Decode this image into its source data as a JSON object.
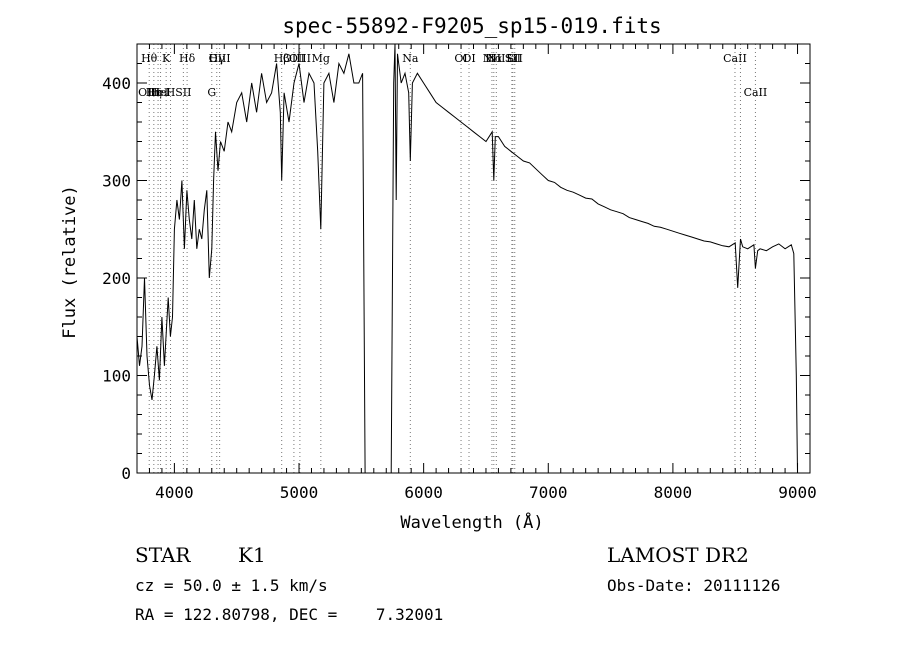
{
  "chart_data": {
    "type": "line",
    "title": "spec-55892-F9205_sp15-019.fits",
    "xlabel": "Wavelength (Å)",
    "ylabel": "Flux (relative)",
    "xlim": [
      3700,
      9100
    ],
    "ylim": [
      0,
      440
    ],
    "xticks": [
      4000,
      5000,
      6000,
      7000,
      8000,
      9000
    ],
    "yticks": [
      0,
      100,
      200,
      300,
      400
    ],
    "grid": false,
    "line_markers": [
      {
        "x": 3798,
        "top": "Hθ",
        "bottom": "OIII"
      },
      {
        "x": 3835,
        "top": "",
        "bottom": "Hη"
      },
      {
        "x": 3869,
        "top": "",
        "bottom": "HeI"
      },
      {
        "x": 3889,
        "top": "",
        "bottom": "HeI"
      },
      {
        "x": 3934,
        "top": "K",
        "bottom": ""
      },
      {
        "x": 3969,
        "top": "",
        "bottom": "H"
      },
      {
        "x": 4072,
        "top": "",
        "bottom": "SII"
      },
      {
        "x": 4102,
        "top": "Hδ",
        "bottom": ""
      },
      {
        "x": 4300,
        "top": "",
        "bottom": "G"
      },
      {
        "x": 4340,
        "top": "Hγ",
        "bottom": ""
      },
      {
        "x": 4363,
        "top": "OIII",
        "bottom": ""
      },
      {
        "x": 4861,
        "top": "Hβ",
        "bottom": ""
      },
      {
        "x": 4959,
        "top": "OIII",
        "bottom": ""
      },
      {
        "x": 5007,
        "top": "OIII",
        "bottom": ""
      },
      {
        "x": 5175,
        "top": "Mg",
        "bottom": ""
      },
      {
        "x": 5893,
        "top": "Na",
        "bottom": ""
      },
      {
        "x": 6300,
        "top": "OI",
        "bottom": ""
      },
      {
        "x": 6364,
        "top": "OI",
        "bottom": ""
      },
      {
        "x": 6548,
        "top": "NII",
        "bottom": ""
      },
      {
        "x": 6563,
        "top": "Hα",
        "bottom": ""
      },
      {
        "x": 6583,
        "top": "NII",
        "bottom": ""
      },
      {
        "x": 6708,
        "top": "Li",
        "bottom": ""
      },
      {
        "x": 6716,
        "top": "SII",
        "bottom": ""
      },
      {
        "x": 6731,
        "top": "SII",
        "bottom": ""
      },
      {
        "x": 8498,
        "top": "CaII",
        "bottom": ""
      },
      {
        "x": 8542,
        "top": "",
        "bottom": ""
      },
      {
        "x": 8662,
        "top": "",
        "bottom": "CaII"
      }
    ],
    "series": [
      {
        "x": [
          3700,
          3720,
          3740,
          3760,
          3780,
          3800,
          3820,
          3840,
          3860,
          3880,
          3900,
          3920,
          3935,
          3950,
          3968,
          3985,
          4000,
          4020,
          4040,
          4060,
          4080,
          4100,
          4120,
          4140,
          4160,
          4180,
          4200,
          4220,
          4240,
          4260,
          4280,
          4300,
          4315,
          4330,
          4350,
          4370,
          4400,
          4430,
          4460,
          4500,
          4540,
          4580,
          4620,
          4660,
          4700,
          4740,
          4780,
          4820,
          4850,
          4861,
          4880,
          4920,
          4960,
          5000,
          5040,
          5080,
          5120,
          5150,
          5175,
          5200,
          5240,
          5280,
          5320,
          5360,
          5400,
          5440,
          5480,
          5510,
          5530,
          5540,
          5560,
          5600,
          5650,
          5700,
          5740,
          5760,
          5770,
          5780,
          5790,
          5800,
          5820,
          5850,
          5880,
          5893,
          5910,
          5950,
          6000,
          6050,
          6100,
          6150,
          6200,
          6250,
          6300,
          6350,
          6400,
          6450,
          6500,
          6550,
          6563,
          6575,
          6600,
          6650,
          6700,
          6750,
          6800,
          6850,
          6900,
          6950,
          7000,
          7050,
          7100,
          7150,
          7200,
          7250,
          7300,
          7350,
          7400,
          7450,
          7500,
          7550,
          7600,
          7650,
          7700,
          7750,
          7800,
          7850,
          7900,
          7950,
          8000,
          8050,
          8100,
          8150,
          8200,
          8250,
          8300,
          8350,
          8400,
          8450,
          8500,
          8520,
          8542,
          8560,
          8600,
          8650,
          8662,
          8680,
          8700,
          8750,
          8800,
          8850,
          8900,
          8950,
          8970,
          8990,
          9000
        ],
        "y": [
          140,
          110,
          130,
          200,
          120,
          90,
          75,
          100,
          130,
          95,
          160,
          110,
          145,
          180,
          140,
          160,
          250,
          280,
          260,
          300,
          230,
          290,
          260,
          240,
          280,
          230,
          250,
          240,
          270,
          290,
          200,
          230,
          300,
          350,
          310,
          340,
          330,
          360,
          350,
          380,
          390,
          360,
          400,
          370,
          410,
          380,
          390,
          420,
          370,
          300,
          390,
          360,
          400,
          420,
          380,
          410,
          400,
          330,
          250,
          400,
          410,
          380,
          420,
          410,
          430,
          400,
          400,
          410,
          0,
          0,
          0,
          0,
          0,
          0,
          0,
          400,
          440,
          280,
          430,
          420,
          400,
          410,
          390,
          320,
          400,
          410,
          400,
          390,
          380,
          375,
          370,
          365,
          360,
          355,
          350,
          345,
          340,
          350,
          300,
          345,
          345,
          335,
          330,
          325,
          320,
          318,
          312,
          306,
          300,
          298,
          293,
          290,
          288,
          285,
          282,
          281,
          276,
          273,
          270,
          268,
          266,
          262,
          260,
          258,
          256,
          253,
          252,
          250,
          248,
          246,
          244,
          242,
          240,
          238,
          237,
          235,
          233,
          232,
          236,
          190,
          240,
          232,
          230,
          234,
          210,
          228,
          230,
          228,
          232,
          235,
          230,
          234,
          225,
          100,
          0
        ]
      }
    ],
    "info": {
      "object_class": "STAR",
      "subclass": "K1",
      "survey": "LAMOST DR2",
      "cz": "cz = 50.0 ± 1.5 km/s",
      "obs_date": "Obs-Date: 20111126",
      "radec": "RA = 122.80798, DEC =    7.32001"
    }
  }
}
